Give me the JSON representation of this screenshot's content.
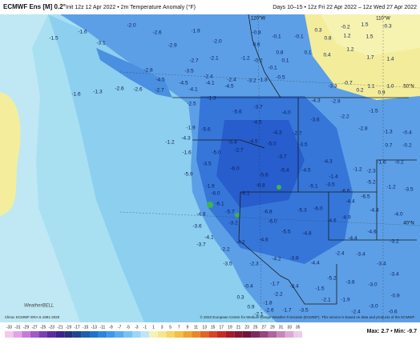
{
  "header": {
    "title": "ECMWF Ens [M] 0.2°",
    "subtitle": "Init 12z 12 Apr 2022 • 2m Temperature Anomaly (°F)",
    "period": "Days 10–15 • 12z Fri 22 Apr 2022 – 12z Wed 27 Apr 2022"
  },
  "map": {
    "grid_labels": [
      "120°W",
      "110°W",
      "50°N",
      "40°N"
    ],
    "labels": [
      "-2.0",
      "-1.6",
      "-1.5",
      "-3.1",
      "-2.6",
      "-2.9",
      "-1.9",
      "-2.0",
      "-0.8",
      "-0.1",
      "-0.1",
      "0.3",
      "0.8",
      "-0.2",
      "1.5",
      "-0.3",
      "1.2",
      "1.5",
      "1.2",
      "1.7",
      "1.4",
      "0.1",
      "0.4",
      "0.6",
      "0.8",
      "0.1",
      "-0.1",
      "-0.5",
      "-1.3",
      "-1.2",
      "-0.2",
      "-2.7",
      "-2.1",
      "-3.5",
      "-2.4",
      "-2.4",
      "-3.2",
      "-4.5",
      "-4.1",
      "-4.5",
      "-2.8",
      "-4.5",
      "-4.1",
      "-2.7",
      "-2.6",
      "-2.6",
      "-1.3",
      "-1.6",
      "-2.5",
      "-1.3",
      "-3.7",
      "-5.6",
      "-4.5",
      "-4.0",
      "-4.3",
      "-3.3",
      "-0.7",
      "1.1",
      "1.0",
      "0.2",
      "0.9",
      "-2.9",
      "-2.2",
      "-2.8",
      "-1.5",
      "-1.3",
      "-0.4",
      "0.7",
      "-0.2",
      "-3.6",
      "-2.7",
      "-4.3",
      "-4.5",
      "-5.4",
      "-5.0",
      "-2.7",
      "-5.0",
      "-3.5",
      "-3.7",
      "-5.4",
      "-4.5",
      "-4.3",
      "-1.4",
      "-5.1",
      "-3.5",
      "-6.6",
      "-1.2",
      "-2.3",
      "-1.6",
      "-0.2",
      "-1.2",
      "-3.5",
      "-5.2",
      "-6.5",
      "-1.9",
      "-5.6",
      "-4.3",
      "-1.2",
      "-1.6",
      "-3.5",
      "-5.9",
      "-6.0",
      "-5.6",
      "-6.8",
      "-1.9",
      "-6.0",
      "-6.1",
      "-6.1",
      "-5.7",
      "-3.2",
      "-6.8",
      "-6.0",
      "-5.3",
      "-6.0",
      "-4.6",
      "-4.4",
      "-4.9",
      "-4.4",
      "-4.0",
      "-4.8",
      "-3.6",
      "-4.1",
      "-3.7",
      "-2.2",
      "-4.2",
      "-4.6",
      "-5.5",
      "-4.8",
      "-4.4",
      "-4.6",
      "-3.2",
      "-3.5",
      "-2.3",
      "-4.2",
      "-3.8",
      "-4.4",
      "-2.4",
      "-3.4",
      "-3.4",
      "-5.2",
      "-3.6",
      "-3.0",
      "-3.4",
      "-0.4",
      "-1.7",
      "-3.4",
      "-1.5",
      "-2.2",
      "-1.8",
      "-1.7",
      "-2.1",
      "-1.9",
      "-2.4",
      "-3.0",
      "-0.9",
      "-0.6",
      "0.3",
      "0.9",
      "-2.1",
      "-2.6",
      "-3.5"
    ]
  },
  "footer": {
    "clima": "Clima: ECMWF ERA-5 1991-2020",
    "logo": "WeatherBELL",
    "copyright": "© 2022 European Centre for Medium-Range Weather Forecasts (ECMWF). This service is based on data and products of the ECMWF.",
    "maxmin": "Max: 2.7 • Min: -9.7"
  },
  "colorbar": {
    "ticks": [
      -33,
      -31,
      -29,
      -27,
      -25,
      -23,
      -21,
      -19,
      -17,
      -15,
      -13,
      -11,
      -9,
      -7,
      -5,
      -3,
      -1,
      1,
      3,
      5,
      7,
      9,
      11,
      13,
      15,
      17,
      19,
      21,
      23,
      25,
      27,
      29,
      31,
      33,
      35
    ],
    "colors": [
      "#f2c8ee",
      "#e3a4e6",
      "#c77ad8",
      "#a25ac6",
      "#7c3fb3",
      "#5a2c9e",
      "#3a2390",
      "#27307f",
      "#1f4694",
      "#1d5fb0",
      "#1f72cc",
      "#2a86e0",
      "#3a99ec",
      "#55aef2",
      "#78c3f5",
      "#9bd6f6",
      "#bde5f7",
      "#f6f2b6",
      "#f8e68c",
      "#f6d465",
      "#f3bf45",
      "#efa333",
      "#ea852a",
      "#e26525",
      "#d74523",
      "#c52a24",
      "#a81a26",
      "#8a1430",
      "#6f143b",
      "#7b2b5e",
      "#95467f",
      "#ae649e",
      "#c785bb",
      "#dda8d4",
      "#eecbe6"
    ]
  }
}
